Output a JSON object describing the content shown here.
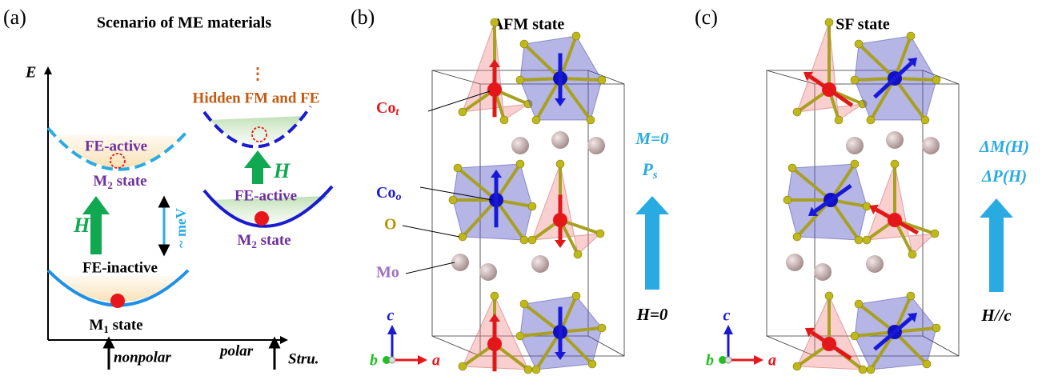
{
  "panel_a": {
    "label": "(a)",
    "title": "Scenario of ME materials",
    "y_axis": "E",
    "x_axis": "Stru.",
    "x_marks": [
      "nonpolar",
      "polar"
    ],
    "ellipsis": "⋮",
    "hidden_phase": "Hidden FM and FE",
    "left": {
      "upper_label": "FE-active",
      "upper_state": {
        "main": "M",
        "sub": "2",
        "rest": " state"
      },
      "field": "H",
      "gap": "~ meV",
      "lower_label": "FE-inactive",
      "lower_state": {
        "main": "M",
        "sub": "1",
        "rest": " state"
      }
    },
    "right": {
      "field": "H",
      "label": "FE-active",
      "state": {
        "main": "M",
        "sub": "2",
        "rest": " state"
      }
    }
  },
  "panel_b": {
    "label": "(b)",
    "title": "AFM state",
    "atoms": [
      {
        "main": "Co",
        "sub": "t"
      },
      {
        "main": "Co",
        "sub": "o"
      },
      {
        "main": "O"
      },
      {
        "main": "Mo"
      }
    ],
    "magnetization": "M=0",
    "polarization": {
      "main": "P",
      "sub": "s"
    },
    "field": "H=0",
    "axes": [
      "c",
      "b",
      "a"
    ]
  },
  "panel_c": {
    "label": "(c)",
    "title": "SF state",
    "magnetization": "ΔM(H)",
    "polarization": "ΔP(H)",
    "field": "H//c",
    "axes": [
      "c",
      "b",
      "a"
    ]
  }
}
